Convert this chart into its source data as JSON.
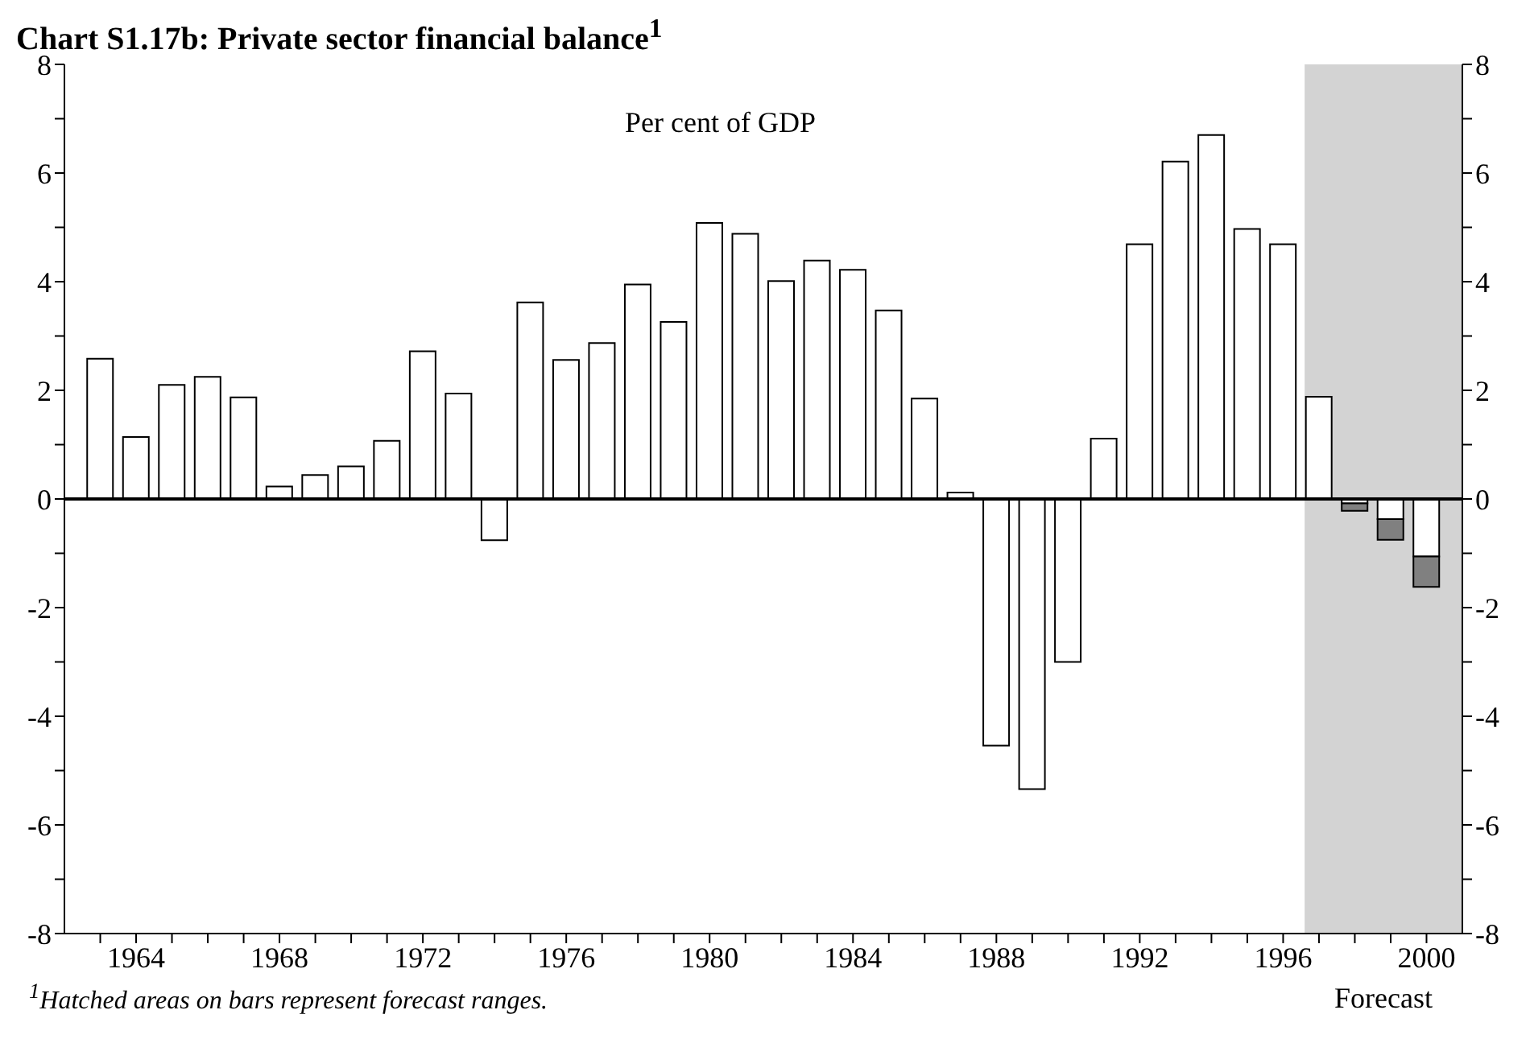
{
  "chart_data": {
    "type": "bar",
    "title": "Chart S1.17b: Private sector financial balance$^{1}$",
    "annotations": [
      "Per cent of GDP",
      "$^{1}$Hatched areas on bars represent forecast ranges."
    ],
    "x": [
      1963,
      1964,
      1965,
      1966,
      1967,
      1968,
      1969,
      1970,
      1971,
      1972,
      1973,
      1974,
      1975,
      1976,
      1977,
      1978,
      1979,
      1980,
      1981,
      1982,
      1983,
      1984,
      1985,
      1986,
      1987,
      1988,
      1989,
      1990,
      1991,
      1992,
      1993,
      1994,
      1995,
      1996,
      1997,
      1998,
      1999,
      2000
    ],
    "stacked": true,
    "series": [
      {
        "color": "#ffffff",
        "values": [
          2.58,
          1.14,
          2.1,
          2.25,
          1.87,
          0.23,
          0.44,
          0.6,
          1.07,
          2.72,
          1.94,
          -0.76,
          3.62,
          2.56,
          2.87,
          3.95,
          3.26,
          5.08,
          4.88,
          4.01,
          4.39,
          4.22,
          3.47,
          1.85,
          0.12,
          -4.54,
          -5.34,
          -3.0,
          1.11,
          4.69,
          6.21,
          6.7,
          4.97,
          4.69,
          1.88,
          -0.08,
          -0.37,
          -1.06
        ]
      },
      {
        "color": "#808080",
        "values": [
          null,
          null,
          null,
          null,
          null,
          null,
          null,
          null,
          null,
          null,
          null,
          null,
          null,
          null,
          null,
          null,
          null,
          null,
          null,
          null,
          null,
          null,
          null,
          null,
          null,
          null,
          null,
          null,
          null,
          null,
          null,
          null,
          null,
          null,
          null,
          -0.14,
          -0.38,
          -0.56
        ]
      }
    ],
    "xlim": [
      1962,
      2001
    ],
    "xticks": [
      {
        "value": 1963,
        "label": null
      },
      1964,
      {
        "value": 1965,
        "label": null
      },
      {
        "value": 1966,
        "label": null
      },
      {
        "value": 1967,
        "label": null
      },
      1968,
      {
        "value": 1969,
        "label": null
      },
      {
        "value": 1970,
        "label": null
      },
      {
        "value": 1971,
        "label": null
      },
      1972,
      {
        "value": 1973,
        "label": null
      },
      {
        "value": 1974,
        "label": null
      },
      {
        "value": 1975,
        "label": null
      },
      1976,
      {
        "value": 1977,
        "label": null
      },
      {
        "value": 1978,
        "label": null
      },
      {
        "value": 1979,
        "label": null
      },
      1980,
      {
        "value": 1981,
        "label": null
      },
      {
        "value": 1982,
        "label": null
      },
      {
        "value": 1983,
        "label": null
      },
      1984,
      {
        "value": 1985,
        "label": null
      },
      {
        "value": 1986,
        "label": null
      },
      {
        "value": 1987,
        "label": null
      },
      1988,
      {
        "value": 1989,
        "label": null
      },
      {
        "value": 1990,
        "label": null
      },
      {
        "value": 1991,
        "label": null
      },
      1992,
      {
        "value": 1993,
        "label": null
      },
      {
        "value": 1994,
        "label": null
      },
      {
        "value": 1995,
        "label": null
      },
      1996,
      {
        "value": 1997,
        "label": null
      },
      {
        "value": 1998,
        "label": null
      },
      {
        "value": 1999,
        "label": null
      },
      2000
    ],
    "ylim": [
      -8,
      8
    ],
    "yticks": [
      -8,
      {
        "value": -7,
        "label": null
      },
      -6,
      {
        "value": -5,
        "label": null
      },
      -4,
      {
        "value": -3,
        "label": null
      },
      -2,
      {
        "value": -1,
        "label": null
      },
      0,
      {
        "value": 1,
        "label": null
      },
      2,
      {
        "value": 3,
        "label": null
      },
      4,
      {
        "value": 5,
        "label": null
      },
      6,
      {
        "value": 7,
        "label": null
      },
      8
    ],
    "y2lim": [
      -8,
      8
    ],
    "y2ticks": [
      -8,
      {
        "value": -7,
        "label": null
      },
      -6,
      {
        "value": -5,
        "label": null
      },
      -4,
      {
        "value": -3,
        "label": null
      },
      -2,
      {
        "value": -1,
        "label": null
      },
      0,
      {
        "value": 1,
        "label": null
      },
      2,
      {
        "value": 3,
        "label": null
      },
      4,
      {
        "value": 5,
        "label": null
      },
      6,
      {
        "value": 7,
        "label": null
      },
      8
    ],
    "ref_lines": [
      {
        "axis": "y",
        "value": 0,
        "color": "#000000"
      }
    ],
    "bands": [
      {
        "axis": "x",
        "from": 1996.6,
        "to": 2001,
        "label": "Forecast",
        "color": "#d3d3d3"
      }
    ],
    "grid": false,
    "legend": false
  }
}
